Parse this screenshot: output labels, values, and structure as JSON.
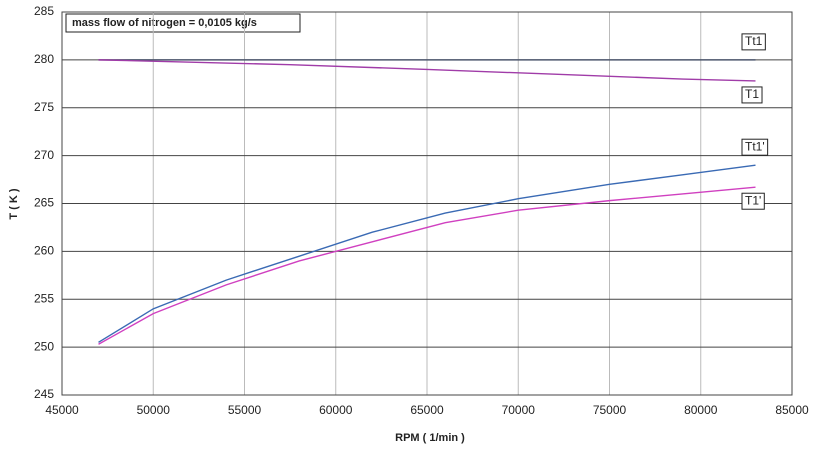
{
  "chart_data": {
    "type": "line",
    "annotation": "mass flow of nitrogen = 0,0105 kg/s",
    "x_label": "RPM   ( 1/min )",
    "y_label": "T ( K )",
    "xlim": [
      45000,
      85000
    ],
    "xticks": [
      45000,
      50000,
      55000,
      60000,
      65000,
      70000,
      75000,
      80000,
      85000
    ],
    "ylim": [
      245,
      285
    ],
    "yticks": [
      245,
      250,
      255,
      260,
      265,
      270,
      275,
      280,
      285
    ],
    "grid": true,
    "series": [
      {
        "name": "Tt1",
        "color": "#505a70",
        "x": [
          47000,
          57500,
          65000,
          72000,
          79000,
          83000
        ],
        "values": [
          280,
          280,
          280,
          280,
          280,
          280
        ]
      },
      {
        "name": "T1",
        "color": "#a03ca8",
        "x": [
          47000,
          57500,
          65000,
          72000,
          79000,
          83000
        ],
        "values": [
          280,
          279.5,
          279,
          278.5,
          278,
          277.8
        ]
      },
      {
        "name": "Tt1'",
        "color": "#3a6ab4",
        "x": [
          47000,
          50000,
          54000,
          58000,
          62000,
          66000,
          70000,
          75000,
          79000,
          83000
        ],
        "values": [
          250.5,
          254,
          257,
          259.5,
          262,
          264,
          265.5,
          267,
          268,
          269
        ]
      },
      {
        "name": "T1'",
        "color": "#d040c0",
        "x": [
          47000,
          50000,
          54000,
          58000,
          62000,
          66000,
          70000,
          75000,
          79000,
          83000
        ],
        "values": [
          250.3,
          253.5,
          256.5,
          259,
          261,
          263,
          264.3,
          265.3,
          266,
          266.7
        ]
      }
    ]
  }
}
